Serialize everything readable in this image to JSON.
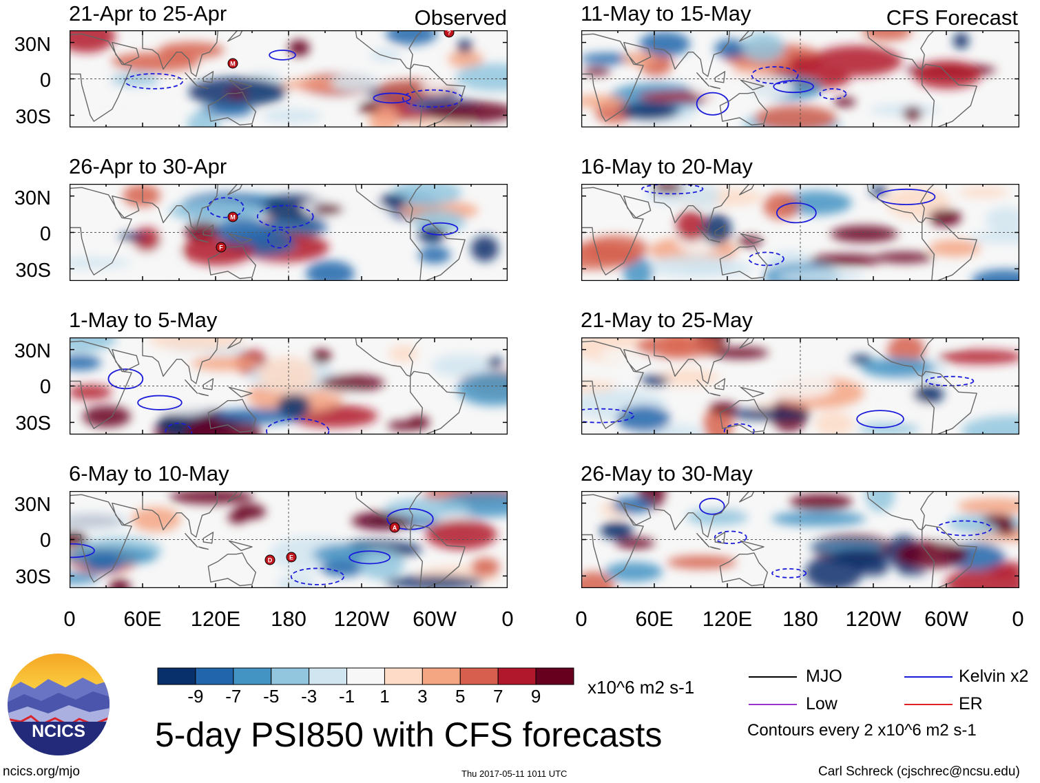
{
  "header": {
    "left_label": "Observed",
    "right_label": "CFS Forecast"
  },
  "panels": {
    "left": [
      {
        "title": "21-Apr to 25-Apr",
        "storms": [
          "M",
          "?"
        ]
      },
      {
        "title": "26-Apr to 30-Apr",
        "storms": [
          "M",
          "F"
        ]
      },
      {
        "title": "1-May to 5-May",
        "storms": []
      },
      {
        "title": "6-May to 10-May",
        "storms": [
          "A",
          "D",
          "E"
        ]
      }
    ],
    "right": [
      {
        "title": "11-May to 15-May"
      },
      {
        "title": "16-May to 20-May"
      },
      {
        "title": "21-May to 25-May"
      },
      {
        "title": "26-May to 30-May"
      }
    ]
  },
  "axes": {
    "lat_ticks": [
      "30N",
      "0",
      "30S"
    ],
    "lon_ticks": [
      "0",
      "60E",
      "120E",
      "180",
      "120W",
      "60W",
      "0"
    ]
  },
  "colorbar": {
    "ticks": [
      "-9",
      "-7",
      "-5",
      "-3",
      "-1",
      "1",
      "3",
      "5",
      "7",
      "9"
    ],
    "units": "x10^6 m2 s-1",
    "colors": [
      "#08306b",
      "#2166ac",
      "#4393c3",
      "#92c5de",
      "#d1e5f0",
      "#f7f7f7",
      "#fddbc7",
      "#f4a582",
      "#d6604d",
      "#b2182b",
      "#67001f"
    ]
  },
  "legend": {
    "mjo": "MJO",
    "kelvin": "Kelvin x2",
    "low": "Low",
    "er": "ER",
    "contours": "Contours every 2 x10^6 m2 s-1",
    "colors": {
      "mjo": "#000000",
      "kelvin": "#1a1adb",
      "low": "#9933cc",
      "er": "#e02020"
    }
  },
  "footer": {
    "main_title": "5-day PSI850 with CFS forecasts",
    "logo_text": "NCICS",
    "url": "ncics.org/mjo",
    "timestamp": "Thu 2017-05-11 1011 UTC",
    "credit": "Carl Schreck (cjschrec@ncsu.edu)"
  }
}
